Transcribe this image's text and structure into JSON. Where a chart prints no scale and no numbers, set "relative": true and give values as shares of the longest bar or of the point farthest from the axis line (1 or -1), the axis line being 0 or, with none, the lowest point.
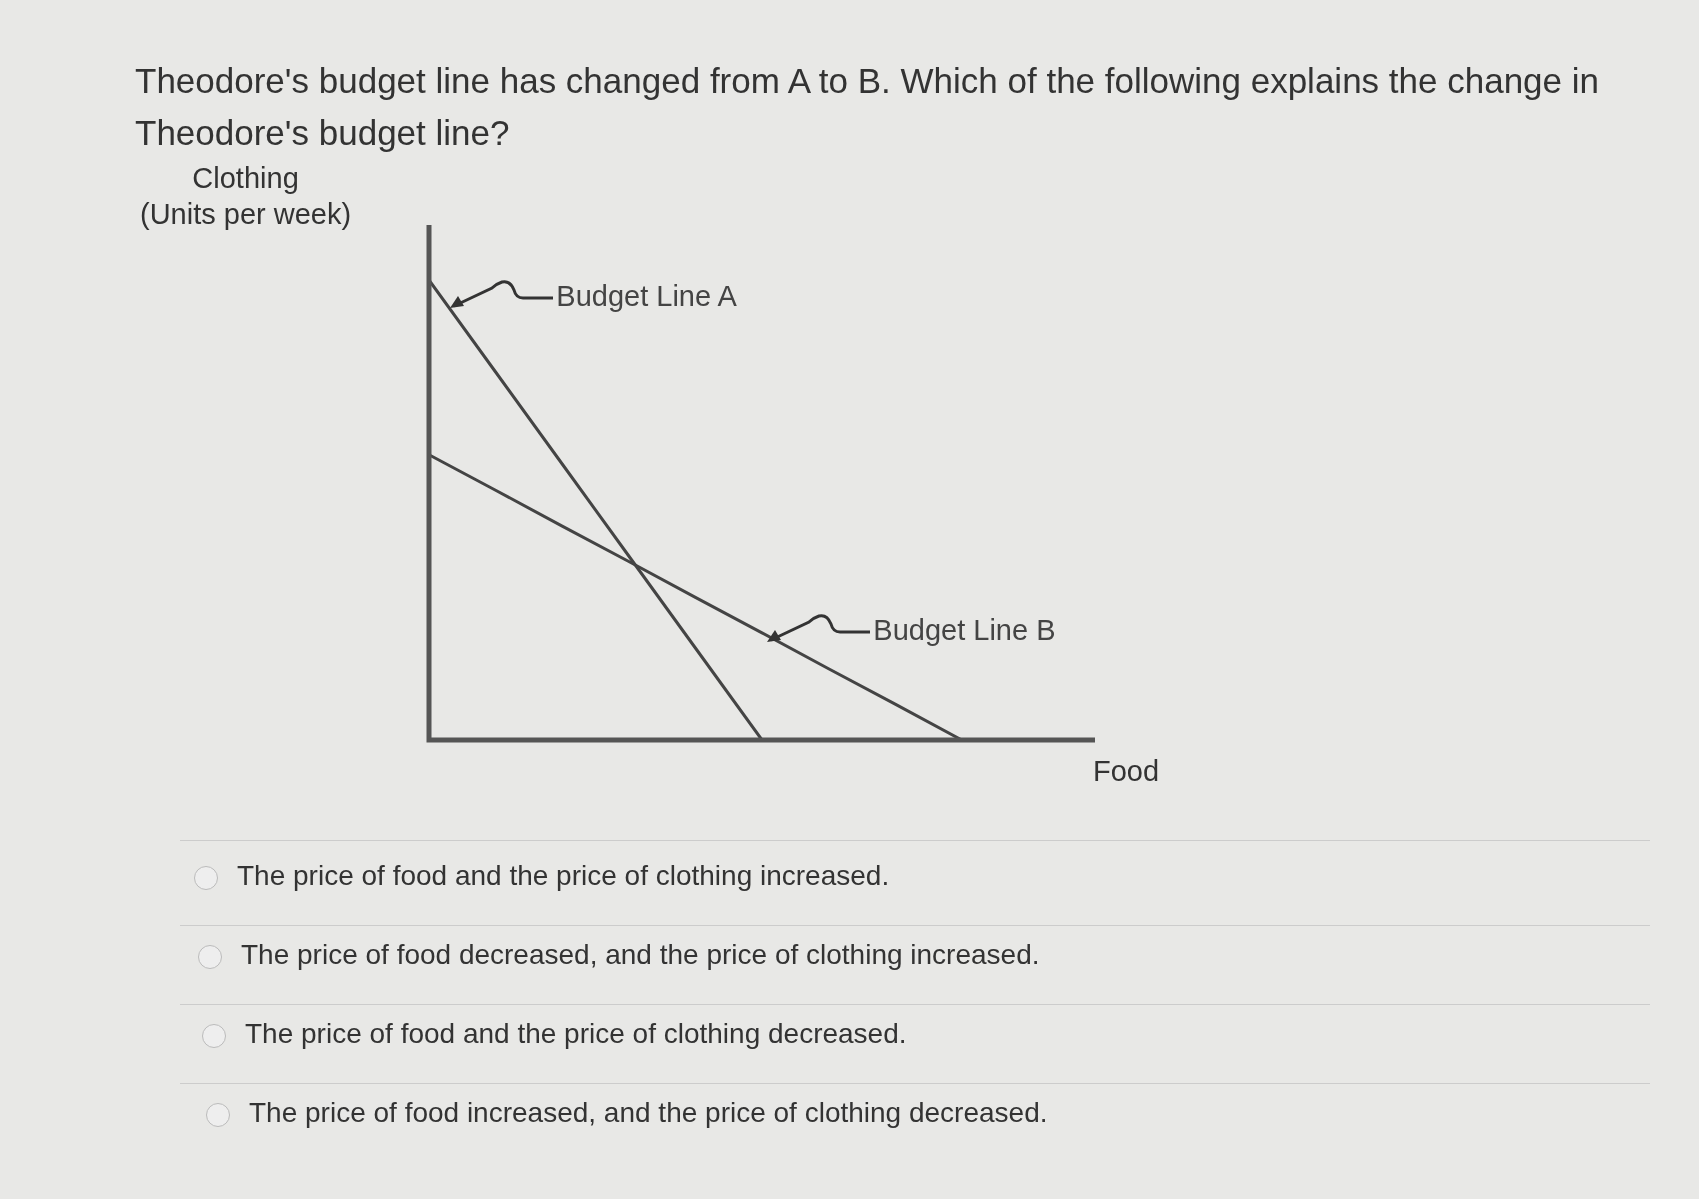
{
  "chart_data": {
    "type": "line",
    "relative": true,
    "title": "Theodore's budget line has changed from A to B. Which of the following explains the change in Theodore's budget line?",
    "ylabel": "Clothing\n(Units per week)",
    "xlabel": "Food",
    "marker": "none",
    "line_style": "solid",
    "categories": [
      null,
      null,
      null,
      null,
      null,
      null,
      null,
      null,
      null,
      null,
      null
    ],
    "series": [
      {
        "name": "Budget Line A",
        "color": "#444444",
        "values": [
          1,
          0.8,
          0.6,
          0.4,
          0.2,
          0,
          null,
          null,
          null,
          null,
          null
        ]
      },
      {
        "name": "Budget Line B",
        "color": "#444444",
        "values": [
          0.62,
          0.543,
          0.465,
          0.388,
          0.31,
          0.233,
          0.155,
          0.078,
          0,
          null,
          null
        ]
      }
    ],
    "annotations": [
      "The price of food and the price of clothing increased.",
      "The price of food decreased, and the price of clothing increased.",
      "The price of food and the price of clothing decreased.",
      "The price of food increased, and the price of clothing decreased."
    ]
  }
}
